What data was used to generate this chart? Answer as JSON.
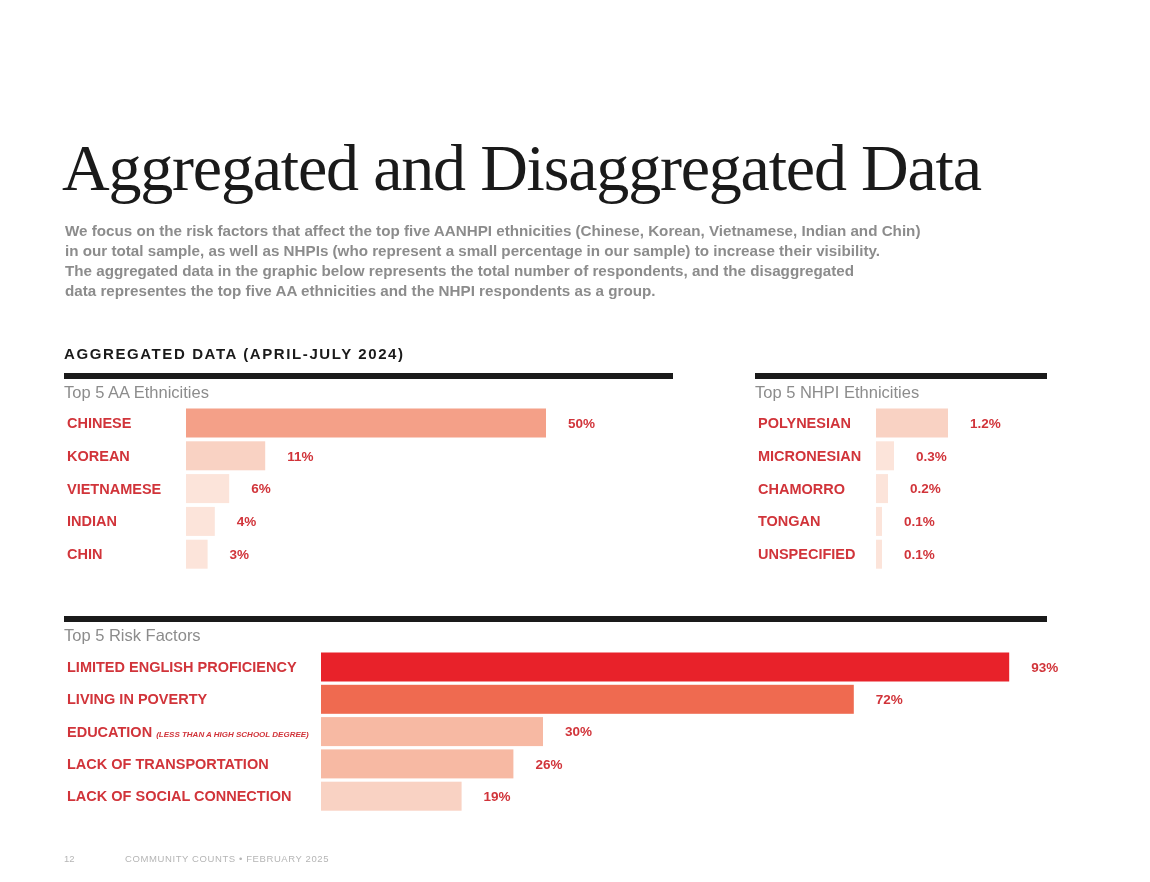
{
  "chart_data": [
    {
      "type": "bar",
      "orientation": "horizontal",
      "title": "Top 5 AA Ethnicities",
      "categories": [
        "CHINESE",
        "KOREAN",
        "VIETNAMESE",
        "INDIAN",
        "CHIN"
      ],
      "values": [
        50,
        11,
        6,
        4,
        3
      ],
      "value_labels": [
        "50%",
        "11%",
        "6%",
        "4%",
        "3%"
      ],
      "colors": [
        "#f4a088",
        "#f9d2c3",
        "#fce4da",
        "#fce4da",
        "#fce4da"
      ],
      "annotations": [
        "Aggregated and Disaggregated Data",
        "We focus on the risk factors that affect the top five AANHPI ethnicities (Chinese, Korean, Vietnamese, Indian and Chin)\nin our total sample, as well as NHPIs (who represent a small percentage in our sample) to increase their visibility.\nThe aggregated data in the graphic below represents the total number of respondents, and the disaggregated\ndata representes the top five AA ethnicities and the NHPI respondents as a group.",
        "AGGREGATED DATA (APRIL-JULY 2024)",
        "12",
        "COMMUNITY COUNTS  •  FEBRUARY 2025"
      ]
    },
    {
      "type": "bar",
      "orientation": "horizontal",
      "title": "Top 5 NHPI Ethnicities",
      "categories": [
        "POLYNESIAN",
        "MICRONESIAN",
        "CHAMORRO",
        "TONGAN",
        "UNSPECIFIED"
      ],
      "values": [
        1.2,
        0.3,
        0.2,
        0.1,
        0.1
      ],
      "value_labels": [
        "1.2%",
        "0.3%",
        "0.2%",
        "0.1%",
        "0.1%"
      ],
      "colors": [
        "#f9d2c3",
        "#fce4da",
        "#fce4da",
        "#fce4da",
        "#fce4da"
      ]
    },
    {
      "type": "bar",
      "orientation": "horizontal",
      "title": "Top 5 Risk Factors",
      "categories": [
        "LIMITED ENGLISH PROFICIENCY",
        "LIVING IN POVERTY",
        "EDUCATION (LESS THAN A HIGH SCHOOL DEGREE)",
        "LACK OF TRANSPORTATION",
        "LACK OF SOCIAL CONNECTION"
      ],
      "values": [
        93,
        72,
        30,
        26,
        19
      ],
      "value_labels": [
        "93%",
        "72%",
        "30%",
        "26%",
        "19%"
      ],
      "colors": [
        "#e8222a",
        "#ef6a50",
        "#f7b9a3",
        "#f7b9a3",
        "#f9d2c3"
      ]
    }
  ]
}
